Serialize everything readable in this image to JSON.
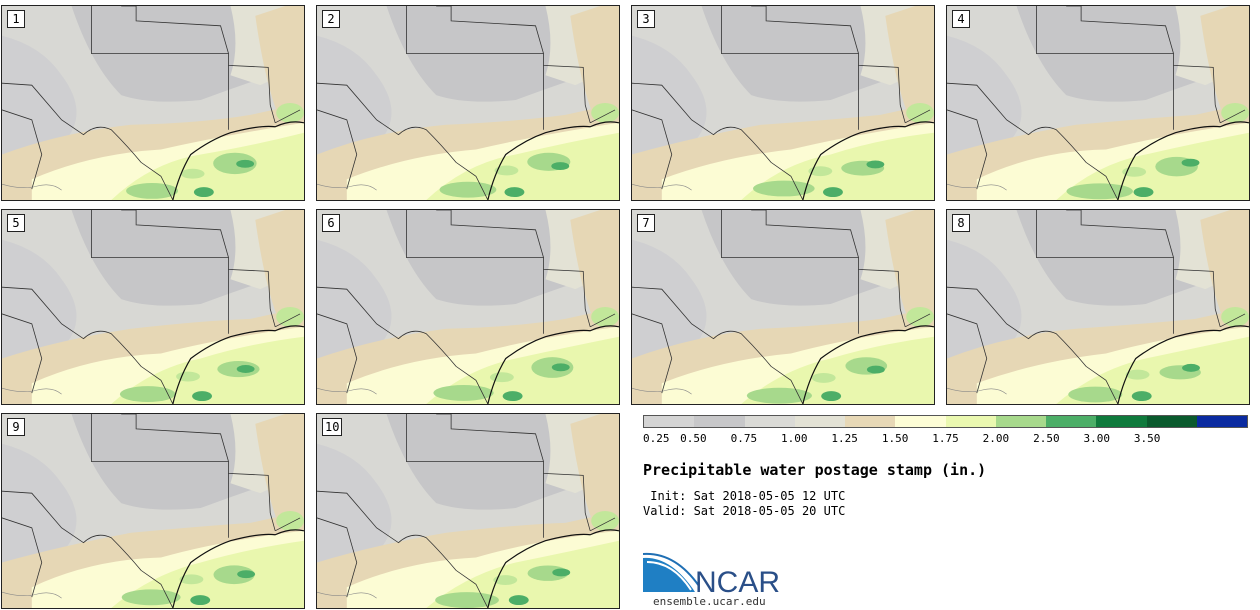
{
  "panels": [
    {
      "label": "1"
    },
    {
      "label": "2"
    },
    {
      "label": "3"
    },
    {
      "label": "4"
    },
    {
      "label": "5"
    },
    {
      "label": "6"
    },
    {
      "label": "7"
    },
    {
      "label": "8"
    },
    {
      "label": "9"
    },
    {
      "label": "10"
    }
  ],
  "colorbar": {
    "colors": [
      "#d4d4d4",
      "#c7c7c9",
      "#dadad6",
      "#e3e2d5",
      "#e7d8b6",
      "#fdfdd6",
      "#eaf8b0",
      "#a7d98c",
      "#4cae67",
      "#0f7a3c",
      "#0a5a2d",
      "#0a2aa0"
    ],
    "ticks": [
      "0.25",
      "0.50",
      "0.75",
      "1.00",
      "1.25",
      "1.50",
      "1.75",
      "2.00",
      "2.50",
      "3.00",
      "3.50"
    ]
  },
  "title": "Precipitable water postage stamp (in.)",
  "init": " Init: Sat 2018-05-05 12 UTC",
  "valid": "Valid: Sat 2018-05-05 20 UTC",
  "logo": {
    "text": "NCAR",
    "url": "ensemble.ucar.edu"
  }
}
